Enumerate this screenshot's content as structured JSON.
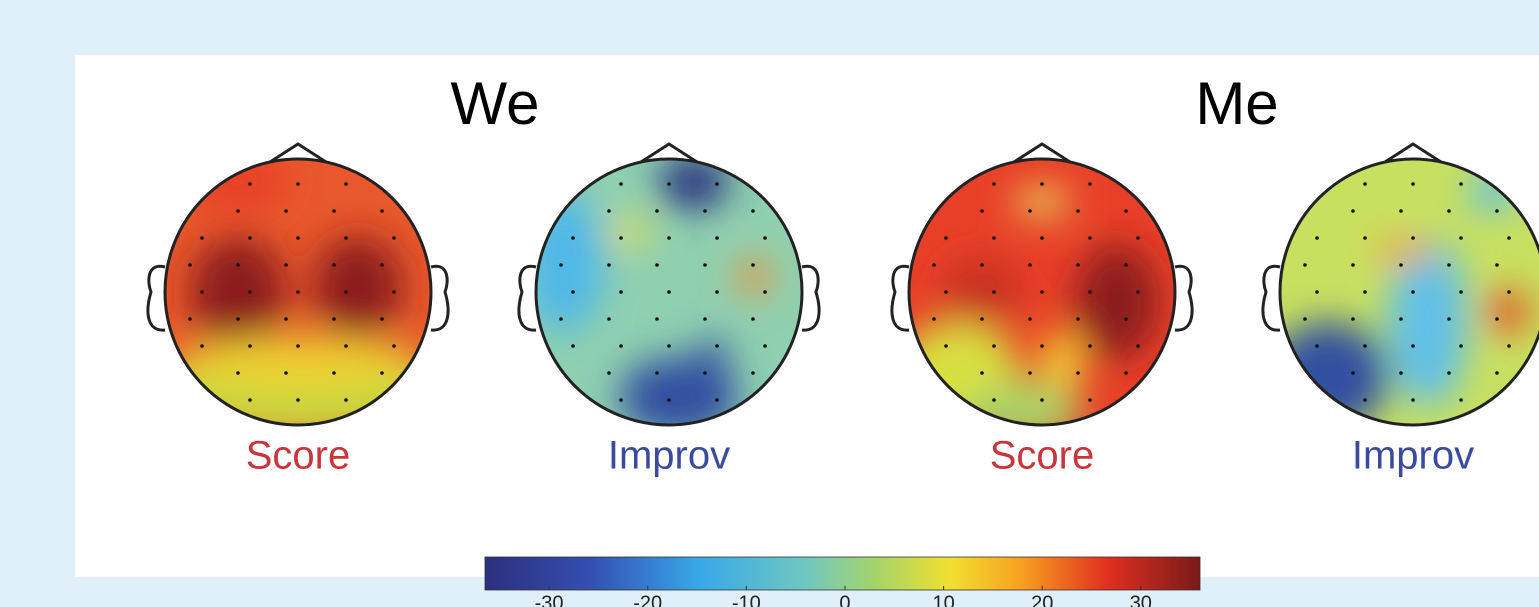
{
  "groups": [
    {
      "title": "We",
      "maps": [
        "Score",
        "Improv"
      ]
    },
    {
      "title": "Me",
      "maps": [
        "Score",
        "Improv"
      ]
    }
  ],
  "colorbar": {
    "lim": [
      -36.5,
      36
    ],
    "ticks": [
      -30,
      -20,
      -10,
      0,
      10,
      20,
      30
    ]
  }
}
